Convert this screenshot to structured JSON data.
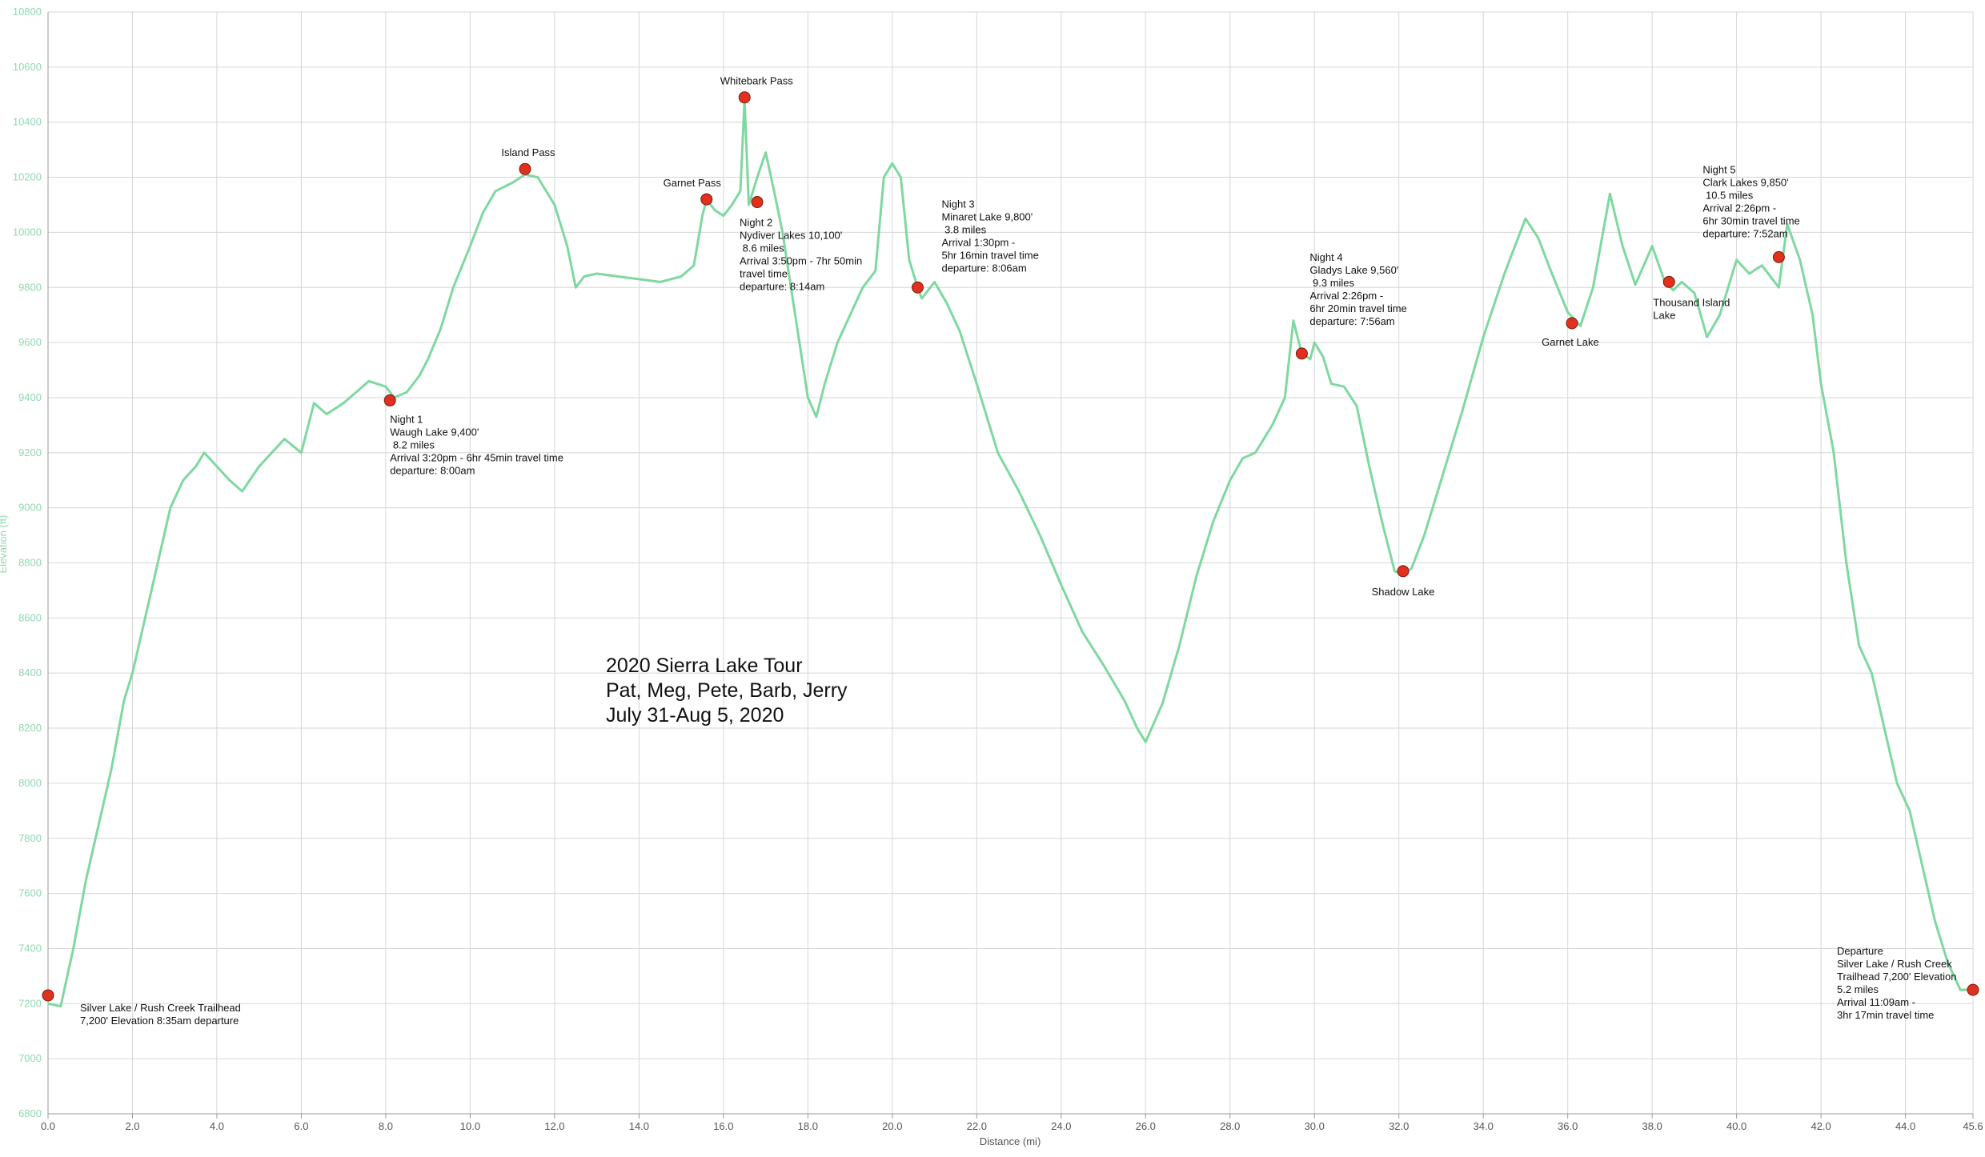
{
  "chart_data": {
    "type": "line",
    "xlabel": "Distance (mi)",
    "ylabel": "Elevation (ft)",
    "xlim": [
      0,
      45.6
    ],
    "ylim": [
      6800,
      10800
    ],
    "x_ticks": [
      "0.0",
      "2.0",
      "4.0",
      "6.0",
      "8.0",
      "10.0",
      "12.0",
      "14.0",
      "16.0",
      "18.0",
      "20.0",
      "22.0",
      "24.0",
      "26.0",
      "28.0",
      "30.0",
      "32.0",
      "34.0",
      "36.0",
      "38.0",
      "40.0",
      "42.0",
      "44.0",
      "45.6"
    ],
    "y_ticks": [
      "6800",
      "7000",
      "7200",
      "7400",
      "7600",
      "7800",
      "8000",
      "8200",
      "8400",
      "8600",
      "8800",
      "9000",
      "9200",
      "9400",
      "9600",
      "9800",
      "10000",
      "10200",
      "10400",
      "10600",
      "10800"
    ],
    "grid": true,
    "line_color": "#7fd8a0",
    "marker_color": "#e0301e",
    "series": [
      {
        "x": [
          0.0,
          0.3,
          0.6,
          0.9,
          1.2,
          1.5,
          1.8,
          2.0,
          2.3,
          2.6,
          2.9,
          3.2,
          3.5,
          3.7,
          4.0,
          4.3,
          4.6,
          5.0,
          5.3,
          5.6,
          6.0,
          6.3,
          6.6,
          7.0,
          7.3,
          7.6,
          8.0,
          8.2,
          8.5,
          8.8,
          9.0,
          9.3,
          9.6,
          10.0,
          10.3,
          10.6,
          11.0,
          11.3,
          11.6,
          12.0,
          12.3,
          12.5,
          12.7,
          13.0,
          13.5,
          14.0,
          14.5,
          15.0,
          15.3,
          15.5,
          15.6,
          15.8,
          16.0,
          16.2,
          16.4,
          16.5,
          16.6,
          16.8,
          17.0,
          17.2,
          17.4,
          17.6,
          17.8,
          18.0,
          18.2,
          18.4,
          18.7,
          19.0,
          19.3,
          19.6,
          19.8,
          20.0,
          20.2,
          20.4,
          20.6,
          20.7,
          21.0,
          21.3,
          21.6,
          22.0,
          22.5,
          23.0,
          23.5,
          24.0,
          24.5,
          25.0,
          25.5,
          25.8,
          26.0,
          26.4,
          26.8,
          27.2,
          27.6,
          28.0,
          28.3,
          28.6,
          29.0,
          29.3,
          29.5,
          29.7,
          29.9,
          30.0,
          30.2,
          30.4,
          30.7,
          31.0,
          31.3,
          31.6,
          31.9,
          32.1,
          32.3,
          32.6,
          33.0,
          33.5,
          34.0,
          34.5,
          35.0,
          35.3,
          35.6,
          36.0,
          36.3,
          36.6,
          37.0,
          37.3,
          37.6,
          38.0,
          38.3,
          38.5,
          38.7,
          39.0,
          39.3,
          39.6,
          40.0,
          40.3,
          40.6,
          41.0,
          41.2,
          41.5,
          41.8,
          42.0,
          42.3,
          42.6,
          42.9,
          43.2,
          43.5,
          43.8,
          44.1,
          44.4,
          44.7,
          45.0,
          45.3,
          45.6
        ],
        "y": [
          7200,
          7190,
          7400,
          7650,
          7850,
          8050,
          8300,
          8400,
          8600,
          8800,
          9000,
          9100,
          9150,
          9200,
          9150,
          9100,
          9060,
          9150,
          9200,
          9250,
          9200,
          9380,
          9340,
          9380,
          9420,
          9460,
          9440,
          9400,
          9420,
          9480,
          9540,
          9650,
          9800,
          9950,
          10070,
          10150,
          10180,
          10210,
          10200,
          10100,
          9950,
          9800,
          9840,
          9850,
          9840,
          9830,
          9820,
          9840,
          9880,
          10060,
          10120,
          10080,
          10060,
          10100,
          10150,
          10480,
          10100,
          10200,
          10290,
          10150,
          10000,
          9800,
          9600,
          9400,
          9330,
          9450,
          9600,
          9700,
          9800,
          9860,
          10200,
          10250,
          10200,
          9900,
          9800,
          9760,
          9820,
          9740,
          9640,
          9450,
          9200,
          9060,
          8900,
          8720,
          8550,
          8430,
          8300,
          8200,
          8150,
          8290,
          8500,
          8750,
          8950,
          9100,
          9180,
          9200,
          9300,
          9400,
          9680,
          9560,
          9540,
          9600,
          9550,
          9450,
          9440,
          9370,
          9150,
          8950,
          8770,
          8760,
          8780,
          8900,
          9100,
          9350,
          9620,
          9850,
          10050,
          9980,
          9860,
          9710,
          9660,
          9800,
          10140,
          9950,
          9810,
          9950,
          9820,
          9790,
          9820,
          9780,
          9620,
          9700,
          9900,
          9850,
          9880,
          9800,
          10030,
          9900,
          9700,
          9450,
          9200,
          8800,
          8500,
          8400,
          8200,
          8000,
          7900,
          7700,
          7500,
          7350,
          7250,
          7250
        ]
      }
    ],
    "markers": [
      {
        "x": 0.0,
        "y": 7230,
        "label": [
          "Silver Lake / Rush Creek Trailhead",
          "7,200' Elevation 8:35am departure"
        ]
      },
      {
        "x": 8.1,
        "y": 9390,
        "label": [
          "Night 1",
          "Waugh Lake 9,400'",
          " 8.2 miles",
          "Arrival 3:20pm - 6hr 45min travel time",
          "departure: 8:00am"
        ]
      },
      {
        "x": 11.3,
        "y": 10230,
        "label": [
          "Island Pass"
        ]
      },
      {
        "x": 15.6,
        "y": 10120,
        "label": [
          "Garnet Pass"
        ]
      },
      {
        "x": 16.5,
        "y": 10490,
        "label": [
          "Whitebark Pass"
        ]
      },
      {
        "x": 16.8,
        "y": 10110,
        "label": [
          "Night 2",
          "Nydiver Lakes 10,100'",
          " 8.6 miles",
          "Arrival 3:50pm - 7hr 50min",
          "travel time",
          "departure: 8:14am"
        ]
      },
      {
        "x": 20.6,
        "y": 9800,
        "label": [
          "Night 3",
          "Minaret Lake 9,800'",
          " 3.8 miles",
          "Arrival 1:30pm -",
          "5hr 16min travel time",
          "departure: 8:06am"
        ]
      },
      {
        "x": 29.7,
        "y": 9560,
        "label": [
          "Night 4",
          "Gladys Lake 9,560'",
          " 9.3 miles",
          "Arrival 2:26pm -",
          "6hr 20min travel time",
          "departure:  7:56am"
        ]
      },
      {
        "x": 32.1,
        "y": 8770,
        "label": [
          "Shadow Lake"
        ]
      },
      {
        "x": 36.1,
        "y": 9670,
        "label": [
          "Garnet Lake"
        ]
      },
      {
        "x": 38.4,
        "y": 9820,
        "label": [
          "Thousand Island",
          "Lake"
        ]
      },
      {
        "x": 41.0,
        "y": 9910,
        "label": [
          "Night 5",
          "Clark Lakes 9,850'",
          " 10.5 miles",
          "Arrival 2:26pm -",
          "6hr 30min travel time",
          "departure:  7:52am"
        ]
      },
      {
        "x": 45.6,
        "y": 7250,
        "label": [
          "Departure",
          "Silver Lake / Rush Creek",
          "Trailhead 7,200' Elevation",
          "5.2 miles",
          "Arrival 11:09am -",
          "3hr 17min travel time"
        ]
      }
    ],
    "annotation": [
      "2020 Sierra Lake Tour",
      "Pat, Meg, Pete, Barb, Jerry",
      "July 31-Aug 5, 2020"
    ]
  }
}
